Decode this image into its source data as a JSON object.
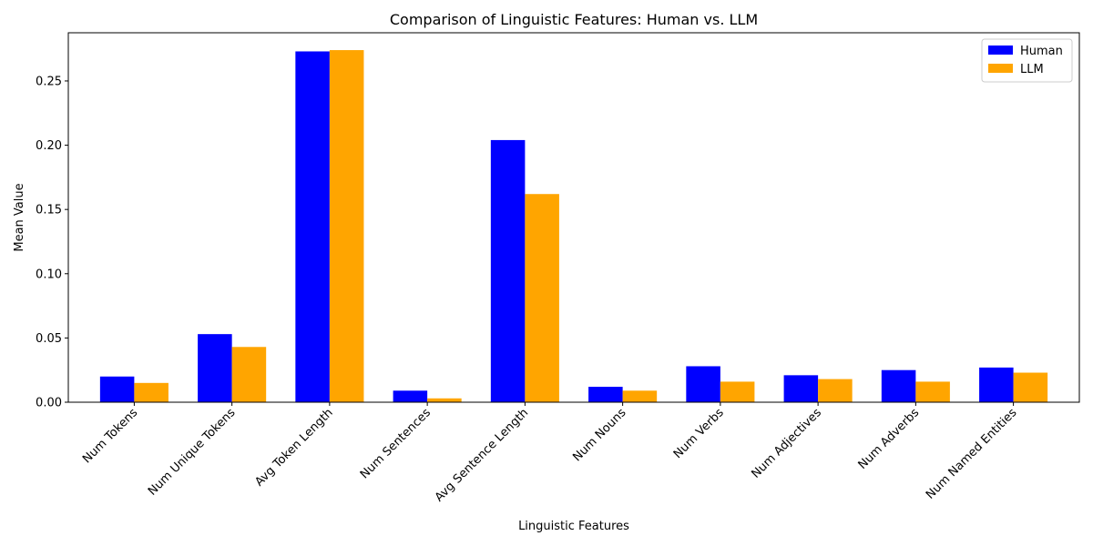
{
  "chart_data": {
    "type": "bar",
    "title": "Comparison of Linguistic Features: Human vs. LLM",
    "xlabel": "Linguistic Features",
    "ylabel": "Mean Value",
    "ylim": [
      0,
      0.2875
    ],
    "yticks": [
      0.0,
      0.05,
      0.1,
      0.15,
      0.2,
      0.25
    ],
    "ytick_labels": [
      "0.00",
      "0.05",
      "0.10",
      "0.15",
      "0.20",
      "0.25"
    ],
    "grid": false,
    "legend_position": "top-right",
    "categories": [
      "Num Tokens",
      "Num Unique Tokens",
      "Avg Token Length",
      "Num Sentences",
      "Avg Sentence Length",
      "Num Nouns",
      "Num Verbs",
      "Num Adjectives",
      "Num Adverbs",
      "Num Named Entities"
    ],
    "series": [
      {
        "name": "Human",
        "color": "#0000ff",
        "values": [
          0.02,
          0.053,
          0.273,
          0.009,
          0.204,
          0.012,
          0.028,
          0.021,
          0.025,
          0.027
        ]
      },
      {
        "name": "LLM",
        "color": "#ffa500",
        "values": [
          0.015,
          0.043,
          0.274,
          0.003,
          0.162,
          0.009,
          0.016,
          0.018,
          0.016,
          0.023
        ]
      }
    ]
  }
}
